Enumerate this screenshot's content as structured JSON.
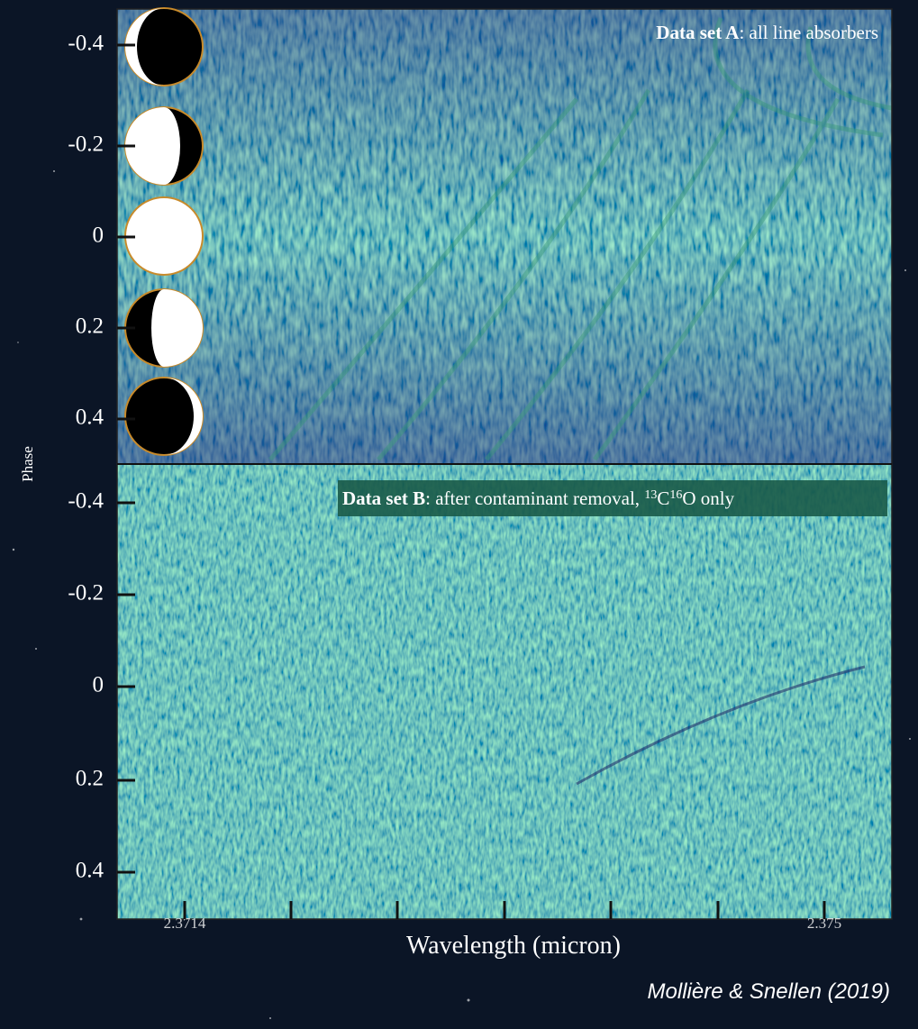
{
  "figure": {
    "panels": [
      {
        "title_bold": "Data set A",
        "title_rest": ": all line absorbers",
        "yticks": [
          "-0.4",
          "-0.2",
          "0",
          "0.2",
          "0.4"
        ]
      },
      {
        "title_bold": "Data set B",
        "title_parts": [
          ": after contaminant removal, ",
          "13",
          "C",
          "16",
          "O only"
        ],
        "yticks": [
          "-0.4",
          "-0.2",
          "0",
          "0.2",
          "0.4"
        ]
      }
    ],
    "ylabel": "Phase",
    "xticks": [
      "2.3714",
      "2.375"
    ],
    "xlabel": "Wavelength (micron)",
    "credit": "Mollière & Snellen (2019)"
  }
}
